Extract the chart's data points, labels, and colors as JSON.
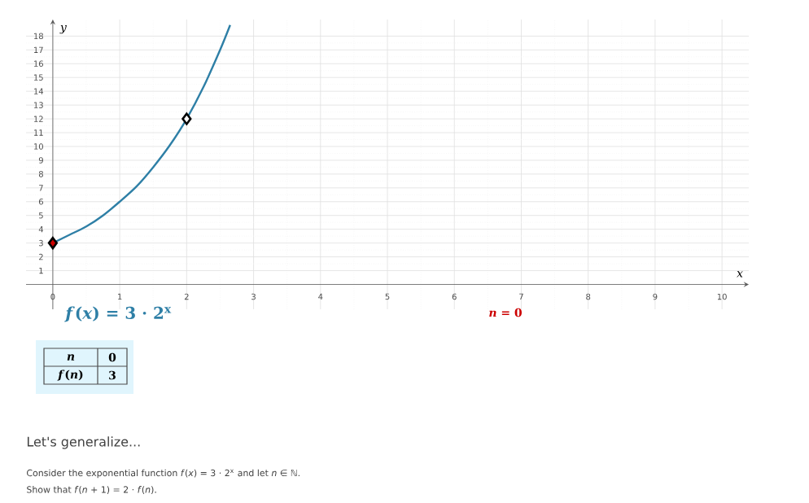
{
  "chart_data": {
    "type": "line",
    "xlabel": "x",
    "ylabel": "y",
    "x": [
      0,
      0.25,
      0.5,
      0.75,
      1,
      1.25,
      1.5,
      1.75,
      2,
      2.25,
      2.5,
      2.65
    ],
    "series": [
      {
        "color": "#2e7fa6",
        "values": [
          3,
          3.6,
          4.2,
          5,
          6,
          7.1,
          8.5,
          10.1,
          12,
          14.3,
          17,
          18.8
        ]
      },
      {
        "type": "scatter",
        "x": [
          0,
          2
        ],
        "values": [
          3,
          12
        ],
        "colors": [
          "#cc0000",
          "#ffffff"
        ],
        "marker": "diamond"
      }
    ],
    "xlim": [
      -0.4,
      10.4
    ],
    "ylim": [
      -1.8,
      19.2
    ],
    "xticks": [
      0,
      1,
      2,
      3,
      4,
      5,
      6,
      7,
      8,
      9,
      10
    ],
    "yticks": [
      1,
      2,
      3,
      4,
      5,
      6,
      7,
      8,
      9,
      10,
      11,
      12,
      13,
      14,
      15,
      16,
      17,
      18
    ],
    "grid": true,
    "marker": "none",
    "line_style": "solid",
    "annotations": [
      "*f*(*x*) = 3 · 2$^{x}$",
      "*n* = 0",
      "*n*",
      "0",
      "*f*(*n*)",
      "3",
      "Let's generalize...",
      "Consider the exponential function  *f*(*x*) = 3 · 2$^{x}$  and let  *n* ∈ ℕ.",
      "Show that  *f*(*n* + 1) = 2 · *f*(*n*)."
    ]
  }
}
